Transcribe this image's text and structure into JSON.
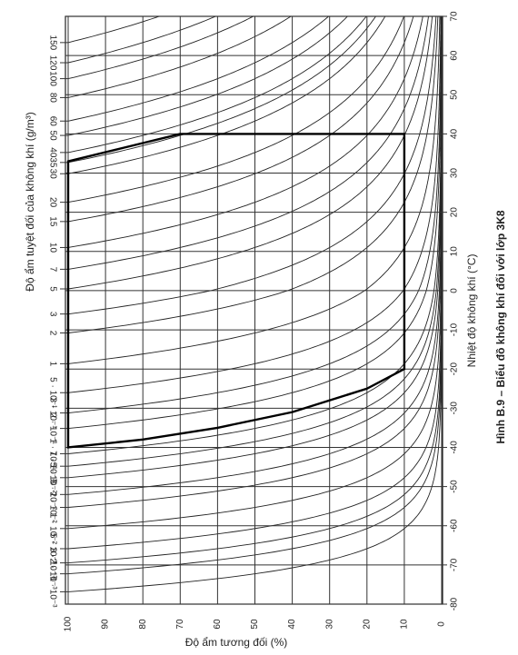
{
  "chart_data": {
    "type": "climatogram",
    "title": "Hình B.9 – Biểu đồ không khí đối với lớp 3K8",
    "xlabel": "Độ ẩm tương đối (%)",
    "ylabel": "Nhiệt độ không khí (°C)",
    "humidity_label": "Độ ẩm tuyệt đối của không khí (g/m³)",
    "xlim": [
      100,
      0
    ],
    "xticks": [
      100,
      90,
      80,
      70,
      60,
      50,
      40,
      30,
      20,
      10,
      0
    ],
    "ylim": [
      -80,
      70
    ],
    "yticks": [
      -80,
      -70,
      -60,
      -50,
      -40,
      -30,
      -20,
      -10,
      0,
      10,
      20,
      30,
      40,
      50,
      60,
      70
    ],
    "humidity_ticks": [
      150,
      120,
      100,
      80,
      60,
      50,
      40,
      35,
      30,
      20,
      15,
      10,
      7,
      5,
      3,
      2,
      1,
      {
        "value": 0.5,
        "label": "5 · 10⁻¹"
      },
      {
        "value": 0.3,
        "label": "3 · 10⁻¹"
      },
      {
        "value": 0.2,
        "label": "2 · 10⁻¹"
      },
      {
        "value": 0.1,
        "label": "1 · 10⁻¹"
      },
      {
        "value": 0.07,
        "label": "7 · 10⁻²"
      },
      {
        "value": 0.05,
        "label": "5 · 10⁻²"
      },
      {
        "value": 0.03,
        "label": "3 · 10⁻²"
      },
      {
        "value": 0.02,
        "label": "2 · 10⁻²"
      },
      {
        "value": 0.01,
        "label": "1 · 10⁻²"
      },
      {
        "value": 0.005,
        "label": "5 · 10⁻³"
      },
      {
        "value": 0.003,
        "label": "3 · 10⁻³"
      },
      {
        "value": 0.002,
        "label": "2 · 10⁻³"
      },
      {
        "value": 0.001,
        "label": "1 · 10⁻³"
      }
    ],
    "boundary": {
      "rh": [
        70,
        10,
        10,
        20,
        40,
        60,
        80,
        100,
        100,
        85,
        70
      ],
      "temp": [
        40,
        40,
        -20,
        -25,
        -31,
        -35,
        -38,
        -40,
        33,
        36.5,
        40
      ]
    },
    "grid": true
  }
}
